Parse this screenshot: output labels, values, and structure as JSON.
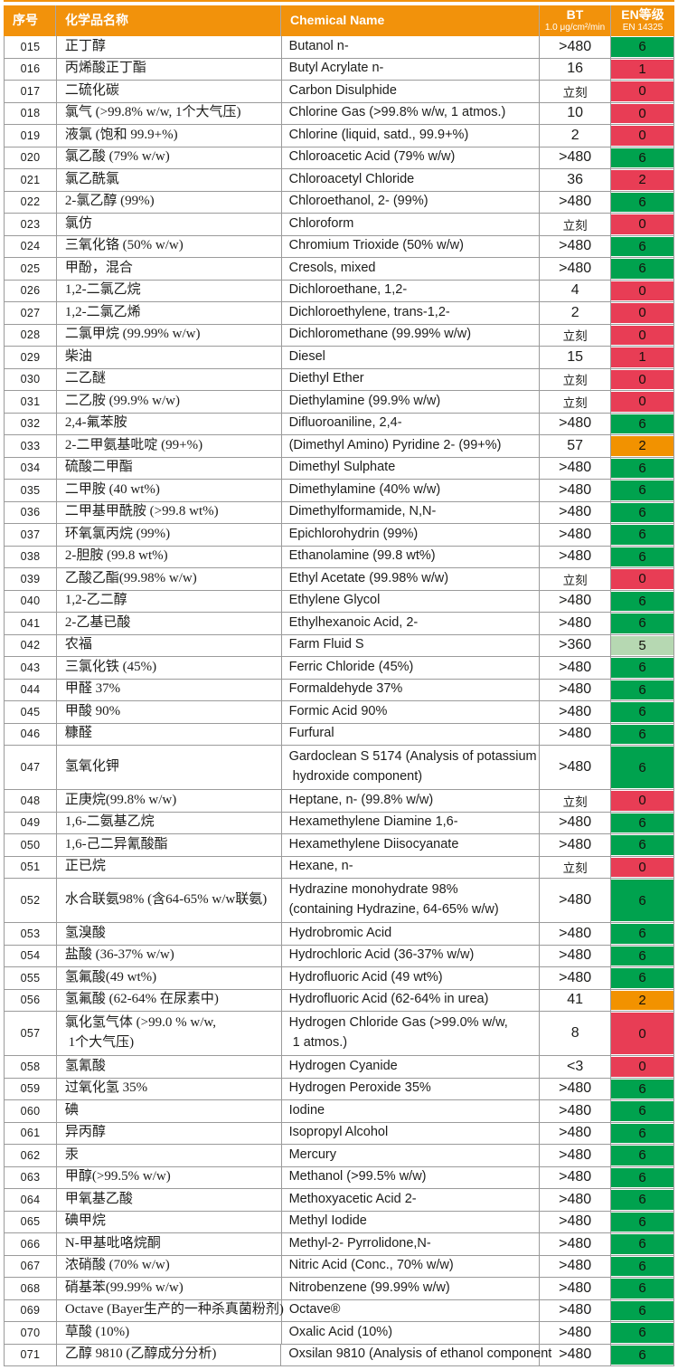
{
  "table": {
    "header": {
      "col_no": "序号",
      "col_name_cn": "化学品名称",
      "col_name_en": "Chemical Name",
      "col_bt": "BT",
      "col_bt_sub": "1.0 μg/cm²/min",
      "col_en": "EN等级",
      "col_en_sub": "EN 14325"
    },
    "colors": {
      "header_orange": "#F2920B",
      "border_gray": "#9B9B9B",
      "green": "#00A24E",
      "lightgreen": "#B6D8B2",
      "orange": "#F29200",
      "red": "#E83D55"
    },
    "rows": [
      {
        "no": "015",
        "cn": "正丁醇",
        "en": "Butanol n-",
        "bt": ">480",
        "rating": "6",
        "color": "green"
      },
      {
        "no": "016",
        "cn": "丙烯酸正丁酯",
        "en": "Butyl Acrylate n-",
        "bt": "16",
        "rating": "1",
        "color": "red"
      },
      {
        "no": "017",
        "cn": "二硫化碳",
        "en": "Carbon Disulphide",
        "bt": "立刻",
        "rating": "0",
        "color": "red"
      },
      {
        "no": "018",
        "cn": "氯气 (>99.8% w/w, 1个大气压)",
        "en": "Chlorine Gas (>99.8% w/w, 1 atmos.)",
        "bt": "10",
        "rating": "0",
        "color": "red"
      },
      {
        "no": "019",
        "cn": "液氯 (饱和 99.9+%)",
        "en": "Chlorine (liquid, satd., 99.9+%)",
        "bt": "2",
        "rating": "0",
        "color": "red"
      },
      {
        "no": "020",
        "cn": "氯乙酸 (79% w/w)",
        "en": "Chloroacetic Acid (79% w/w)",
        "bt": ">480",
        "rating": "6",
        "color": "green"
      },
      {
        "no": "021",
        "cn": "氯乙酰氯",
        "en": "Chloroacetyl Chloride",
        "bt": "36",
        "rating": "2",
        "color": "red"
      },
      {
        "no": "022",
        "cn": "2-氯乙醇 (99%)",
        "en": "Chloroethanol, 2- (99%)",
        "bt": ">480",
        "rating": "6",
        "color": "green"
      },
      {
        "no": "023",
        "cn": "氯仿",
        "en": "Chloroform",
        "bt": "立刻",
        "rating": "0",
        "color": "red"
      },
      {
        "no": "024",
        "cn": "三氧化铬 (50% w/w)",
        "en": "Chromium Trioxide (50% w/w)",
        "bt": ">480",
        "rating": "6",
        "color": "green"
      },
      {
        "no": "025",
        "cn": "甲酚，混合",
        "en": "Cresols, mixed",
        "bt": ">480",
        "rating": "6",
        "color": "green"
      },
      {
        "no": "026",
        "cn": "1,2-二氯乙烷",
        "en": "Dichloroethane, 1,2-",
        "bt": "4",
        "rating": "0",
        "color": "red"
      },
      {
        "no": "027",
        "cn": "1,2-二氯乙烯",
        "en": "Dichloroethylene, trans-1,2-",
        "bt": "2",
        "rating": "0",
        "color": "red"
      },
      {
        "no": "028",
        "cn": "二氯甲烷 (99.99% w/w)",
        "en": "Dichloromethane (99.99% w/w)",
        "bt": "立刻",
        "rating": "0",
        "color": "red"
      },
      {
        "no": "029",
        "cn": "柴油",
        "en": "Diesel",
        "bt": "15",
        "rating": "1",
        "color": "red"
      },
      {
        "no": "030",
        "cn": "二乙醚",
        "en": "Diethyl Ether",
        "bt": "立刻",
        "rating": "0",
        "color": "red"
      },
      {
        "no": "031",
        "cn": "二乙胺 (99.9% w/w)",
        "en": "Diethylamine (99.9% w/w)",
        "bt": "立刻",
        "rating": "0",
        "color": "red"
      },
      {
        "no": "032",
        "cn": "2,4-氟苯胺",
        "en": "Difluoroaniline, 2,4-",
        "bt": ">480",
        "rating": "6",
        "color": "green"
      },
      {
        "no": "033",
        "cn": "2-二甲氨基吡啶 (99+%)",
        "en": "(Dimethyl Amino) Pyridine 2- (99+%)",
        "bt": "57",
        "rating": "2",
        "color": "orange"
      },
      {
        "no": "034",
        "cn": "硫酸二甲酯",
        "en": "Dimethyl Sulphate",
        "bt": ">480",
        "rating": "6",
        "color": "green"
      },
      {
        "no": "035",
        "cn": "二甲胺 (40 wt%)",
        "en": "Dimethylamine (40% w/w)",
        "bt": ">480",
        "rating": "6",
        "color": "green"
      },
      {
        "no": "036",
        "cn": "二甲基甲酰胺 (>99.8 wt%)",
        "en": "Dimethylformamide, N,N-",
        "bt": ">480",
        "rating": "6",
        "color": "green"
      },
      {
        "no": "037",
        "cn": "环氧氯丙烷 (99%)",
        "en": "Epichlorohydrin (99%)",
        "bt": ">480",
        "rating": "6",
        "color": "green"
      },
      {
        "no": "038",
        "cn": "2-胆胺 (99.8 wt%)",
        "en": "Ethanolamine (99.8 wt%)",
        "bt": ">480",
        "rating": "6",
        "color": "green"
      },
      {
        "no": "039",
        "cn": "乙酸乙酯(99.98% w/w)",
        "en": "Ethyl Acetate (99.98% w/w)",
        "bt": "立刻",
        "rating": "0",
        "color": "red"
      },
      {
        "no": "040",
        "cn": "1,2-乙二醇",
        "en": "Ethylene Glycol",
        "bt": ">480",
        "rating": "6",
        "color": "green"
      },
      {
        "no": "041",
        "cn": "2-乙基已酸",
        "en": "Ethylhexanoic Acid, 2-",
        "bt": ">480",
        "rating": "6",
        "color": "green"
      },
      {
        "no": "042",
        "cn": "农福",
        "en": "Farm Fluid S",
        "bt": ">360",
        "rating": "5",
        "color": "lightgreen"
      },
      {
        "no": "043",
        "cn": "三氯化铁 (45%)",
        "en": "Ferric Chloride (45%)",
        "bt": ">480",
        "rating": "6",
        "color": "green"
      },
      {
        "no": "044",
        "cn": "甲醛 37%",
        "en": "Formaldehyde 37%",
        "bt": ">480",
        "rating": "6",
        "color": "green"
      },
      {
        "no": "045",
        "cn": "甲酸 90%",
        "en": "Formic Acid 90%",
        "bt": ">480",
        "rating": "6",
        "color": "green"
      },
      {
        "no": "046",
        "cn": "糠醛",
        "en": "Furfural",
        "bt": ">480",
        "rating": "6",
        "color": "green"
      },
      {
        "no": "047",
        "cn": "氢氧化钾",
        "en": "Gardoclean S 5174 (Analysis of potassium\n hydroxide component)",
        "bt": ">480",
        "rating": "6",
        "color": "green",
        "tall": true
      },
      {
        "no": "048",
        "cn": "正庚烷(99.8% w/w)",
        "en": "Heptane, n- (99.8% w/w)",
        "bt": "立刻",
        "rating": "0",
        "color": "red"
      },
      {
        "no": "049",
        "cn": "1,6-二氨基乙烷",
        "en": "Hexamethylene Diamine 1,6-",
        "bt": ">480",
        "rating": "6",
        "color": "green"
      },
      {
        "no": "050",
        "cn": "1,6-己二异氰酸酯",
        "en": "Hexamethylene Diisocyanate",
        "bt": ">480",
        "rating": "6",
        "color": "green"
      },
      {
        "no": "051",
        "cn": "正已烷",
        "en": "Hexane, n-",
        "bt": "立刻",
        "rating": "0",
        "color": "red"
      },
      {
        "no": "052",
        "cn": "水合联氨98% (含64-65% w/w联氨)",
        "en": "Hydrazine monohydrate 98%\n(containing Hydrazine, 64-65% w/w)",
        "bt": ">480",
        "rating": "6",
        "color": "green",
        "tall": true
      },
      {
        "no": "053",
        "cn": "氢溴酸",
        "en": "Hydrobromic Acid",
        "bt": ">480",
        "rating": "6",
        "color": "green"
      },
      {
        "no": "054",
        "cn": "盐酸 (36-37% w/w)",
        "en": "Hydrochloric Acid (36-37% w/w)",
        "bt": ">480",
        "rating": "6",
        "color": "green"
      },
      {
        "no": "055",
        "cn": "氢氟酸(49 wt%)",
        "en": "Hydrofluoric Acid (49 wt%)",
        "bt": ">480",
        "rating": "6",
        "color": "green"
      },
      {
        "no": "056",
        "cn": "氢氟酸 (62-64% 在尿素中)",
        "en": "Hydrofluoric Acid (62-64% in urea)",
        "bt": "41",
        "rating": "2",
        "color": "orange"
      },
      {
        "no": "057",
        "cn": "氯化氢气体 (>99.0 % w/w,\n 1个大气压)",
        "en": "Hydrogen Chloride Gas (>99.0% w/w,\n 1 atmos.)",
        "bt": "8",
        "rating": "0",
        "color": "red",
        "tall": true
      },
      {
        "no": "058",
        "cn": "氢氰酸",
        "en": "Hydrogen Cyanide",
        "bt": "<3",
        "rating": "0",
        "color": "red"
      },
      {
        "no": "059",
        "cn": "过氧化氢 35%",
        "en": "Hydrogen Peroxide 35%",
        "bt": ">480",
        "rating": "6",
        "color": "green"
      },
      {
        "no": "060",
        "cn": "碘",
        "en": "Iodine",
        "bt": ">480",
        "rating": "6",
        "color": "green"
      },
      {
        "no": "061",
        "cn": "异丙醇",
        "en": "Isopropyl Alcohol",
        "bt": ">480",
        "rating": "6",
        "color": "green"
      },
      {
        "no": "062",
        "cn": "汞",
        "en": "Mercury",
        "bt": ">480",
        "rating": "6",
        "color": "green"
      },
      {
        "no": "063",
        "cn": "甲醇(>99.5% w/w)",
        "en": "Methanol (>99.5% w/w)",
        "bt": ">480",
        "rating": "6",
        "color": "green"
      },
      {
        "no": "064",
        "cn": "甲氧基乙酸",
        "en": "Methoxyacetic Acid 2-",
        "bt": ">480",
        "rating": "6",
        "color": "green"
      },
      {
        "no": "065",
        "cn": "碘甲烷",
        "en": "Methyl Iodide",
        "bt": ">480",
        "rating": "6",
        "color": "green"
      },
      {
        "no": "066",
        "cn": "N-甲基吡咯烷酮",
        "en": "Methyl-2- Pyrrolidone,N-",
        "bt": ">480",
        "rating": "6",
        "color": "green"
      },
      {
        "no": "067",
        "cn": "浓硝酸 (70% w/w)",
        "en": "Nitric Acid (Conc., 70% w/w)",
        "bt": ">480",
        "rating": "6",
        "color": "green"
      },
      {
        "no": "068",
        "cn": "硝基苯(99.99% w/w)",
        "en": "Nitrobenzene (99.99% w/w)",
        "bt": ">480",
        "rating": "6",
        "color": "green"
      },
      {
        "no": "069",
        "cn": "Octave (Bayer生产的一种杀真菌粉剂)",
        "en": "Octave®",
        "bt": ">480",
        "rating": "6",
        "color": "green"
      },
      {
        "no": "070",
        "cn": "草酸 (10%)",
        "en": "Oxalic Acid (10%)",
        "bt": ">480",
        "rating": "6",
        "color": "green"
      },
      {
        "no": "071",
        "cn": "乙醇 9810 (乙醇成分分析)",
        "en": "Oxsilan 9810 (Analysis of ethanol component",
        "bt": ">480",
        "rating": "6",
        "color": "green"
      }
    ]
  }
}
